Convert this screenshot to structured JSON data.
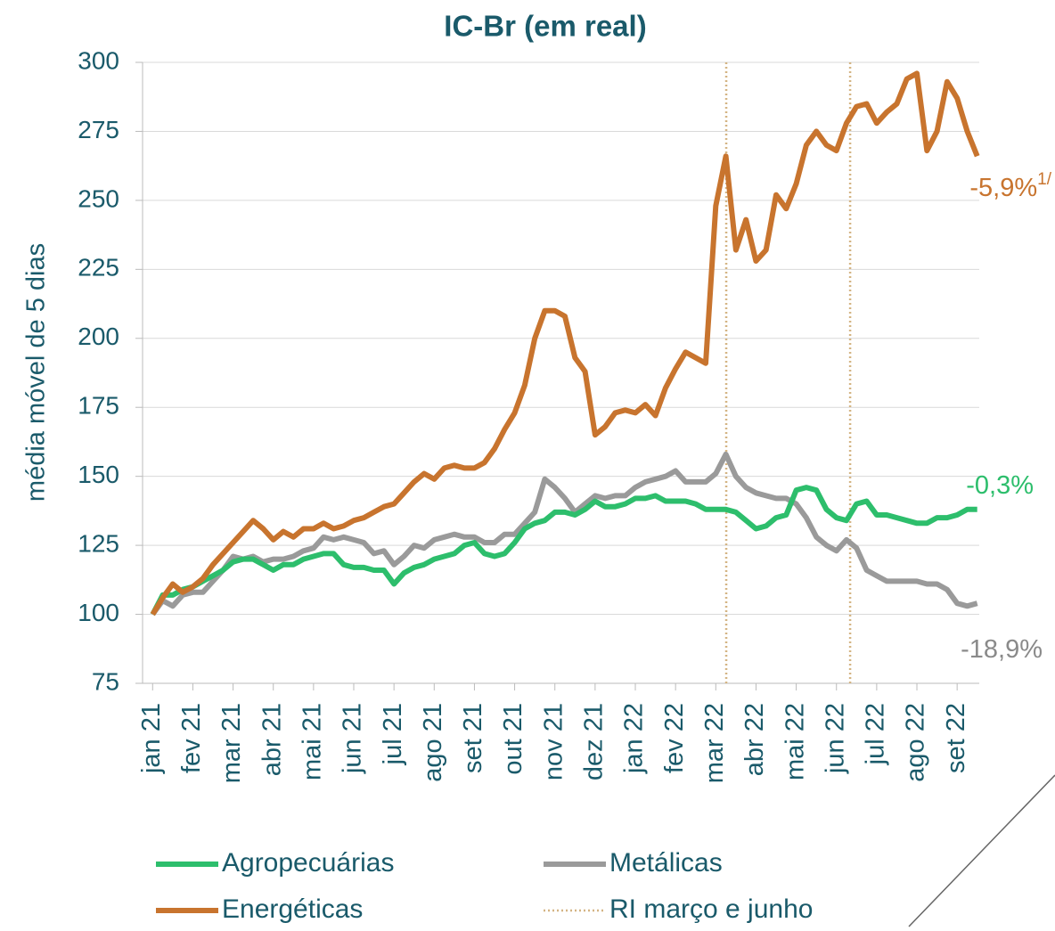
{
  "chart_data": {
    "type": "line",
    "title": "IC-Br (em real)",
    "y_label": "média móvel de 5 dias",
    "x": [
      0,
      0.25,
      0.5,
      0.75,
      1,
      1.25,
      1.5,
      1.75,
      2,
      2.25,
      2.5,
      2.75,
      3,
      3.25,
      3.5,
      3.75,
      4,
      4.25,
      4.5,
      4.75,
      5,
      5.25,
      5.5,
      5.75,
      6,
      6.25,
      6.5,
      6.75,
      7,
      7.25,
      7.5,
      7.75,
      8,
      8.25,
      8.5,
      8.75,
      9,
      9.25,
      9.5,
      9.75,
      10,
      10.25,
      10.5,
      10.75,
      11,
      11.25,
      11.5,
      11.75,
      12,
      12.25,
      12.5,
      12.75,
      13,
      13.25,
      13.5,
      13.75,
      14,
      14.25,
      14.5,
      14.75,
      15,
      15.25,
      15.5,
      15.75,
      16,
      16.25,
      16.5,
      16.75,
      17,
      17.25,
      17.5,
      17.75,
      18,
      18.25,
      18.5,
      18.75,
      19,
      19.25,
      19.5,
      19.75,
      20,
      20.25,
      20.5
    ],
    "xlim": [
      -0.25,
      20.55
    ],
    "xticks": [
      {
        "value": 0,
        "label": "jan 21"
      },
      {
        "value": 1,
        "label": "fev 21"
      },
      {
        "value": 2,
        "label": "mar 21"
      },
      {
        "value": 3,
        "label": "abr 21"
      },
      {
        "value": 4,
        "label": "mai 21"
      },
      {
        "value": 5,
        "label": "jun 21"
      },
      {
        "value": 6,
        "label": "jul 21"
      },
      {
        "value": 7,
        "label": "ago 21"
      },
      {
        "value": 8,
        "label": "set 21"
      },
      {
        "value": 9,
        "label": "out 21"
      },
      {
        "value": 10,
        "label": "nov 21"
      },
      {
        "value": 11,
        "label": "dez 21"
      },
      {
        "value": 12,
        "label": "jan 22"
      },
      {
        "value": 13,
        "label": "fev 22"
      },
      {
        "value": 14,
        "label": "mar 22"
      },
      {
        "value": 15,
        "label": "abr 22"
      },
      {
        "value": 16,
        "label": "mai 22"
      },
      {
        "value": 17,
        "label": "jun 22"
      },
      {
        "value": 18,
        "label": "jul 22"
      },
      {
        "value": 19,
        "label": "ago 22"
      },
      {
        "value": 20,
        "label": "set 22"
      }
    ],
    "ylim": [
      75,
      300
    ],
    "yticks": [
      75,
      100,
      125,
      150,
      175,
      200,
      225,
      250,
      275,
      300
    ],
    "grid": true,
    "series": [
      {
        "name": "Agropecuárias",
        "color": "#2dbe6c",
        "values": [
          100,
          107,
          107,
          109,
          110,
          112,
          114,
          116,
          119,
          120,
          120,
          118,
          116,
          118,
          118,
          120,
          121,
          122,
          122,
          118,
          117,
          117,
          116,
          116,
          111,
          115,
          117,
          118,
          120,
          121,
          122,
          125,
          126,
          122,
          121,
          122,
          126,
          131,
          133,
          134,
          137,
          137,
          136,
          138,
          141,
          139,
          139,
          140,
          142,
          142,
          143,
          141,
          141,
          141,
          140,
          138,
          138,
          138,
          137,
          134,
          131,
          132,
          135,
          136,
          145,
          146,
          145,
          138,
          135,
          134,
          140,
          141,
          136,
          136,
          135,
          134,
          133,
          133,
          135,
          135,
          136,
          138,
          138
        ]
      },
      {
        "name": "Metálicas",
        "color": "#9a9a9a",
        "values": [
          100,
          105,
          103,
          107,
          108,
          108,
          112,
          116,
          121,
          120,
          121,
          119,
          120,
          120,
          121,
          123,
          124,
          128,
          127,
          128,
          127,
          126,
          122,
          123,
          118,
          121,
          125,
          124,
          127,
          128,
          129,
          128,
          128,
          126,
          126,
          129,
          129,
          133,
          137,
          149,
          146,
          142,
          137,
          140,
          143,
          142,
          143,
          143,
          146,
          148,
          149,
          150,
          152,
          148,
          148,
          148,
          151,
          158,
          150,
          146,
          144,
          143,
          142,
          142,
          140,
          135,
          128,
          125,
          123,
          127,
          124,
          116,
          114,
          112,
          112,
          112,
          112,
          111,
          111,
          109,
          104,
          103,
          104
        ]
      },
      {
        "name": "Energéticas",
        "color": "#c8742e",
        "values": [
          100,
          106,
          111,
          108,
          110,
          113,
          118,
          122,
          126,
          130,
          134,
          131,
          127,
          130,
          128,
          131,
          131,
          133,
          131,
          132,
          134,
          135,
          137,
          139,
          140,
          144,
          148,
          151,
          149,
          153,
          154,
          153,
          153,
          155,
          160,
          167,
          173,
          183,
          200,
          210,
          210,
          208,
          193,
          188,
          165,
          168,
          173,
          174,
          173,
          176,
          172,
          182,
          189,
          195,
          193,
          191,
          248,
          266,
          232,
          243,
          228,
          232,
          252,
          247,
          256,
          270,
          275,
          270,
          268,
          278,
          284,
          285,
          278,
          282,
          285,
          294,
          296,
          268,
          275,
          293,
          287,
          275,
          266
        ]
      }
    ],
    "vlines": {
      "name": "RI março e junho",
      "color": "#d4b483",
      "x": [
        14.26,
        17.34
      ]
    },
    "annotations": [
      {
        "text": "-5,9%",
        "superscript": "1/",
        "color": "#c8742e"
      },
      {
        "text": "-0,3%",
        "color": "#2dbe6c"
      },
      {
        "text": "-18,9%",
        "color": "#8a8a8a"
      }
    ]
  }
}
